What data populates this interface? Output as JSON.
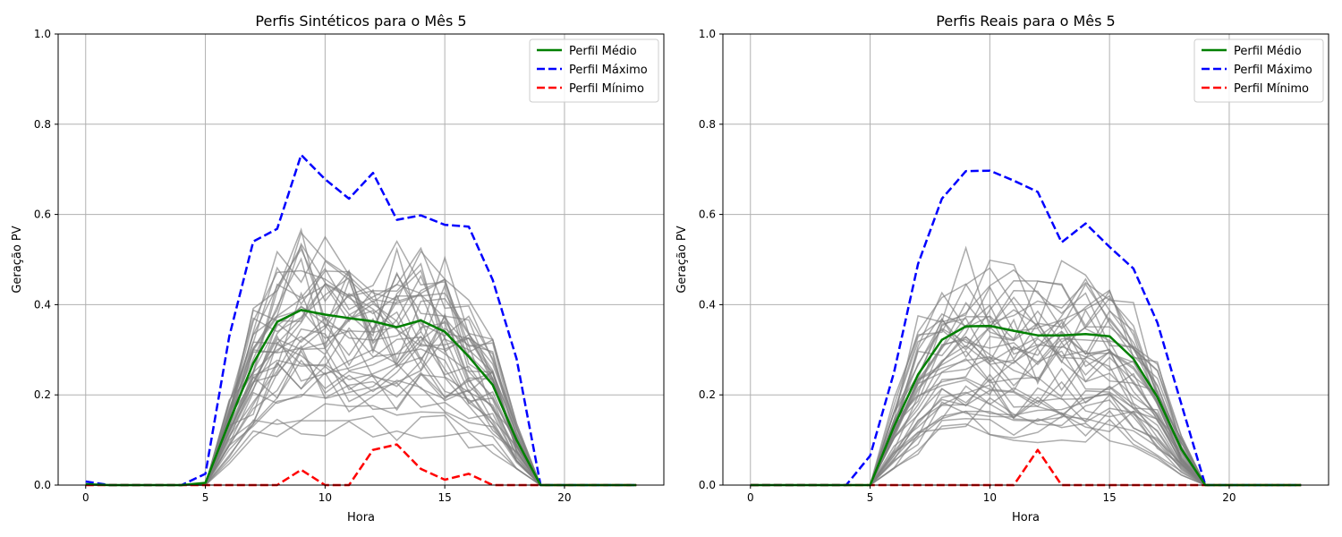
{
  "chart_data": [
    {
      "type": "line",
      "title": "Perfis Sintéticos para o Mês 5",
      "xlabel": "Hora",
      "ylabel": "Geração PV",
      "xlim": [
        -1.15,
        24.15
      ],
      "ylim": [
        0,
        1.0
      ],
      "xticks": [
        "0",
        "5",
        "10",
        "15",
        "20"
      ],
      "yticks": [
        "0.0",
        "0.2",
        "0.4",
        "0.6",
        "0.8",
        "1.0"
      ],
      "grid": true,
      "legend_position": "top-right",
      "x": [
        0,
        1,
        2,
        3,
        4,
        5,
        6,
        7,
        8,
        9,
        10,
        11,
        12,
        13,
        14,
        15,
        16,
        17,
        18,
        19,
        20,
        21,
        22,
        23
      ],
      "series": [
        {
          "name": "Perfil Médio",
          "color": "#008000",
          "style": "solid",
          "values": [
            0.002,
            0,
            0,
            0,
            0,
            0.005,
            0.14,
            0.27,
            0.362,
            0.388,
            0.378,
            0.37,
            0.363,
            0.35,
            0.365,
            0.34,
            0.285,
            0.222,
            0.1,
            0,
            0,
            0,
            0,
            0
          ]
        },
        {
          "name": "Perfil Máximo",
          "color": "#0000ff",
          "style": "dashed",
          "values": [
            0.008,
            0,
            0,
            0,
            0,
            0.025,
            0.33,
            0.54,
            0.568,
            0.732,
            0.678,
            0.635,
            0.692,
            0.588,
            0.598,
            0.577,
            0.573,
            0.455,
            0.28,
            0,
            0,
            0,
            0,
            0
          ]
        },
        {
          "name": "Perfil Mínimo",
          "color": "#ff0000",
          "style": "dashed",
          "values": [
            0,
            0,
            0,
            0,
            0,
            0,
            0,
            0,
            0,
            0.034,
            0,
            0,
            0.078,
            0.09,
            0.036,
            0.012,
            0.025,
            0,
            0,
            0,
            0,
            0,
            0,
            0
          ]
        }
      ],
      "individual_profiles_color": "#808080",
      "individual_profiles_count": 40
    },
    {
      "type": "line",
      "title": "Perfis Reais para o Mês 5",
      "xlabel": "Hora",
      "ylabel": "Geração PV",
      "xlim": [
        -1.15,
        24.15
      ],
      "ylim": [
        0,
        1.0
      ],
      "xticks": [
        "0",
        "5",
        "10",
        "15",
        "20"
      ],
      "yticks": [
        "0.0",
        "0.2",
        "0.4",
        "0.6",
        "0.8",
        "1.0"
      ],
      "grid": true,
      "legend_position": "top-right",
      "x": [
        0,
        1,
        2,
        3,
        4,
        5,
        6,
        7,
        8,
        9,
        10,
        11,
        12,
        13,
        14,
        15,
        16,
        17,
        18,
        19,
        20,
        21,
        22,
        23
      ],
      "series": [
        {
          "name": "Perfil Médio",
          "color": "#008000",
          "style": "solid",
          "values": [
            0,
            0,
            0,
            0,
            0,
            0,
            0.13,
            0.245,
            0.322,
            0.352,
            0.353,
            0.342,
            0.332,
            0.332,
            0.335,
            0.33,
            0.28,
            0.195,
            0.08,
            0,
            0,
            0,
            0,
            0
          ]
        },
        {
          "name": "Perfil Máximo",
          "color": "#0000ff",
          "style": "dashed",
          "values": [
            0,
            0,
            0,
            0,
            0,
            0.065,
            0.25,
            0.49,
            0.635,
            0.696,
            0.697,
            0.675,
            0.65,
            0.538,
            0.58,
            0.528,
            0.48,
            0.36,
            0.18,
            0,
            0,
            0,
            0,
            0
          ]
        },
        {
          "name": "Perfil Mínimo",
          "color": "#ff0000",
          "style": "dashed",
          "values": [
            0,
            0,
            0,
            0,
            0,
            0,
            0,
            0,
            0,
            0,
            0,
            0,
            0.078,
            0,
            0,
            0,
            0,
            0,
            0,
            0,
            0,
            0,
            0,
            0
          ]
        }
      ],
      "individual_profiles_color": "#808080",
      "individual_profiles_count": 40
    }
  ]
}
